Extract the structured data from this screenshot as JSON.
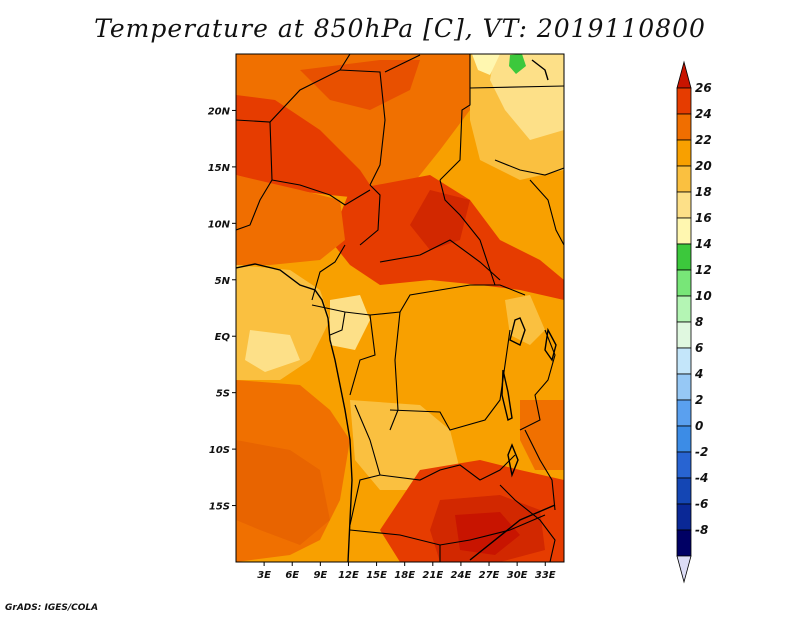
{
  "title": "Temperature at 850hPa [C], VT: 2019110800",
  "credit": "GrADS: IGES/COLA",
  "map": {
    "lat_labels": [
      "20N",
      "15N",
      "10N",
      "5N",
      "EQ",
      "5S",
      "10S",
      "15S"
    ],
    "lat_values": [
      20,
      15,
      10,
      5,
      0,
      -5,
      -10,
      -15
    ],
    "lon_labels": [
      "3E",
      "6E",
      "9E",
      "12E",
      "15E",
      "18E",
      "21E",
      "24E",
      "27E",
      "30E",
      "33E"
    ],
    "lon_values": [
      3,
      6,
      9,
      12,
      15,
      18,
      21,
      24,
      27,
      30,
      33
    ],
    "lon_range": [
      0,
      35
    ],
    "lat_range": [
      -20,
      25
    ]
  },
  "colorbar": {
    "labels": [
      "26",
      "24",
      "22",
      "20",
      "18",
      "16",
      "14",
      "12",
      "10",
      "8",
      "6",
      "4",
      "2",
      "0",
      "-2",
      "-4",
      "-6",
      "-8"
    ],
    "colors": [
      "#c81400",
      "#e63c00",
      "#f06e00",
      "#f8a000",
      "#fac040",
      "#fde088",
      "#fff7b0",
      "#3cc83c",
      "#78e678",
      "#b4f5b4",
      "#e0f8e0",
      "#c4e6fa",
      "#96c8f5",
      "#5aa0ef",
      "#3c8ce6",
      "#2864d2",
      "#1446b4",
      "#0a2896",
      "#000064",
      "#dcdcf5"
    ]
  }
}
